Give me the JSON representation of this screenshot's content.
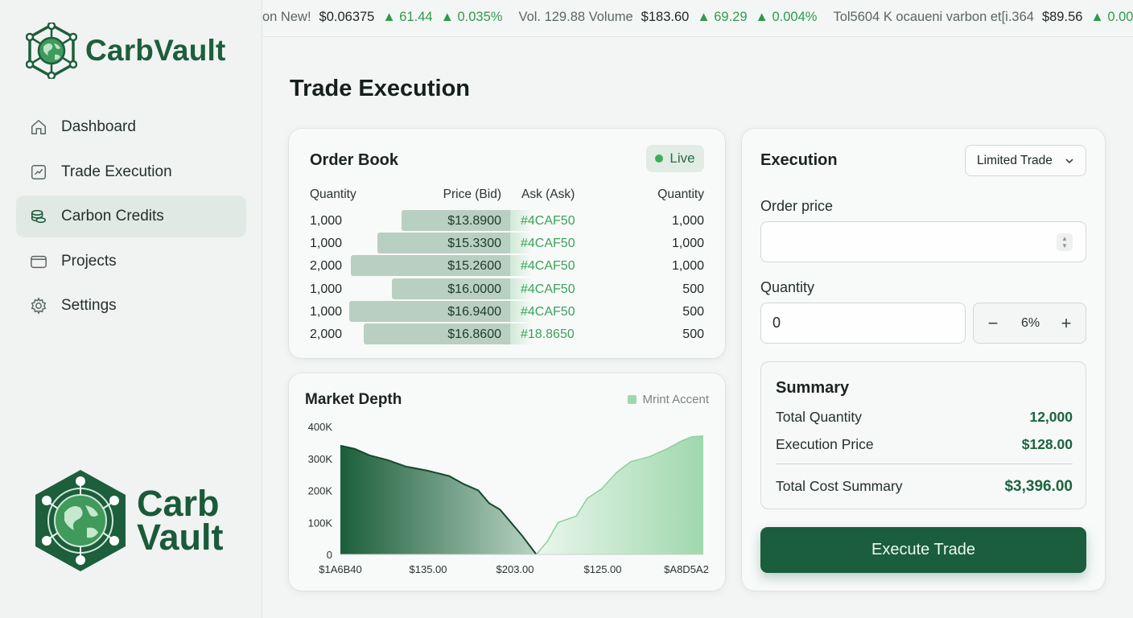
{
  "brand": {
    "name": "CarbVault",
    "logo_line1": "Carb",
    "logo_line2": "Vault"
  },
  "sidebar": {
    "items": [
      {
        "label": "Dashboard",
        "icon": "home-icon",
        "active": false
      },
      {
        "label": "Trade Execution",
        "icon": "chart-trend-icon",
        "active": false
      },
      {
        "label": "Carbon Credits",
        "icon": "coins-icon",
        "active": true
      },
      {
        "label": "Projects",
        "icon": "wallet-icon",
        "active": false
      },
      {
        "label": "Settings",
        "icon": "gear-icon",
        "active": false
      }
    ]
  },
  "ticker": [
    {
      "label": "on New!",
      "price": "$0.06375",
      "change": "▲ 61.44",
      "pct": "▲ 0.035%"
    },
    {
      "label": "Vol. 129.88 Volume",
      "price": "$183.60",
      "change": "▲ 69.29",
      "pct": "▲ 0.004%"
    },
    {
      "label": "Tol5604 K ocaueni varbon et[i.364",
      "price": "$89.56",
      "change": "▲ 0.00",
      "pct": ""
    }
  ],
  "page": {
    "title": "Trade Execution"
  },
  "order_book": {
    "title": "Order Book",
    "live_label": "Live",
    "headers": {
      "qty_left": "Quantity",
      "bid": "Price (Bid)",
      "ask": "Ask (Ask)",
      "qty_right": "Quantity"
    },
    "rows": [
      {
        "qty_bid": "1,000",
        "bid": "$13.8900",
        "ask": "#4CAF50",
        "qty_ask": "1,000",
        "depth": 0.66
      },
      {
        "qty_bid": "1,000",
        "bid": "$15.3300",
        "ask": "#4CAF50",
        "qty_ask": "1,000",
        "depth": 0.81
      },
      {
        "qty_bid": "2,000",
        "bid": "$15.2600",
        "ask": "#4CAF50",
        "qty_ask": "1,000",
        "depth": 0.97
      },
      {
        "qty_bid": "1,000",
        "bid": "$16.0000",
        "ask": "#4CAF50",
        "qty_ask": "500",
        "depth": 0.72
      },
      {
        "qty_bid": "1,000",
        "bid": "$16.9400",
        "ask": "#4CAF50",
        "qty_ask": "500",
        "depth": 0.98
      },
      {
        "qty_bid": "2,000",
        "bid": "$16.8600",
        "ask": "#18.8650",
        "qty_ask": "500",
        "depth": 0.89
      }
    ]
  },
  "market_depth": {
    "title": "Market Depth",
    "legend": "Mrint Accent"
  },
  "chart_data": {
    "type": "area",
    "title": "Market Depth",
    "y_ticks": [
      "400K",
      "300K",
      "200K",
      "100K",
      "0"
    ],
    "x_ticks": [
      "$1A6B40",
      "$135.00",
      "$203.00",
      "$125.00",
      "$A8D5A2"
    ],
    "ylim": [
      0,
      400000
    ],
    "series": [
      {
        "name": "bids",
        "points": [
          [
            0,
            340000
          ],
          [
            0.04,
            330000
          ],
          [
            0.08,
            310000
          ],
          [
            0.13,
            295000
          ],
          [
            0.18,
            275000
          ],
          [
            0.24,
            262000
          ],
          [
            0.3,
            245000
          ],
          [
            0.34,
            220000
          ],
          [
            0.38,
            200000
          ],
          [
            0.41,
            160000
          ],
          [
            0.44,
            140000
          ],
          [
            0.47,
            100000
          ],
          [
            0.5,
            60000
          ],
          [
            0.52,
            30000
          ],
          [
            0.54,
            0
          ]
        ]
      },
      {
        "name": "asks",
        "points": [
          [
            0.54,
            0
          ],
          [
            0.57,
            40000
          ],
          [
            0.6,
            100000
          ],
          [
            0.65,
            120000
          ],
          [
            0.68,
            175000
          ],
          [
            0.72,
            205000
          ],
          [
            0.76,
            255000
          ],
          [
            0.8,
            290000
          ],
          [
            0.85,
            305000
          ],
          [
            0.9,
            330000
          ],
          [
            0.94,
            355000
          ],
          [
            0.97,
            368000
          ],
          [
            1.0,
            370000
          ]
        ]
      }
    ],
    "colors": {
      "bids": "#1b5e3b",
      "asks": "#9fd8ad"
    }
  },
  "execution": {
    "title": "Execution",
    "order_type": "Limited Trade",
    "order_price_label": "Order price",
    "order_price_value": "",
    "quantity_label": "Quantity",
    "quantity_value": "0",
    "percent": "6%",
    "summary": {
      "title": "Summary",
      "rows": [
        {
          "label": "Total Quantity",
          "value": "12,000"
        },
        {
          "label": "Execution Price",
          "value": "$128.00"
        }
      ],
      "total": {
        "label": "Total Cost Summary",
        "value": "$3,396.00"
      }
    },
    "button": "Execute Trade"
  }
}
